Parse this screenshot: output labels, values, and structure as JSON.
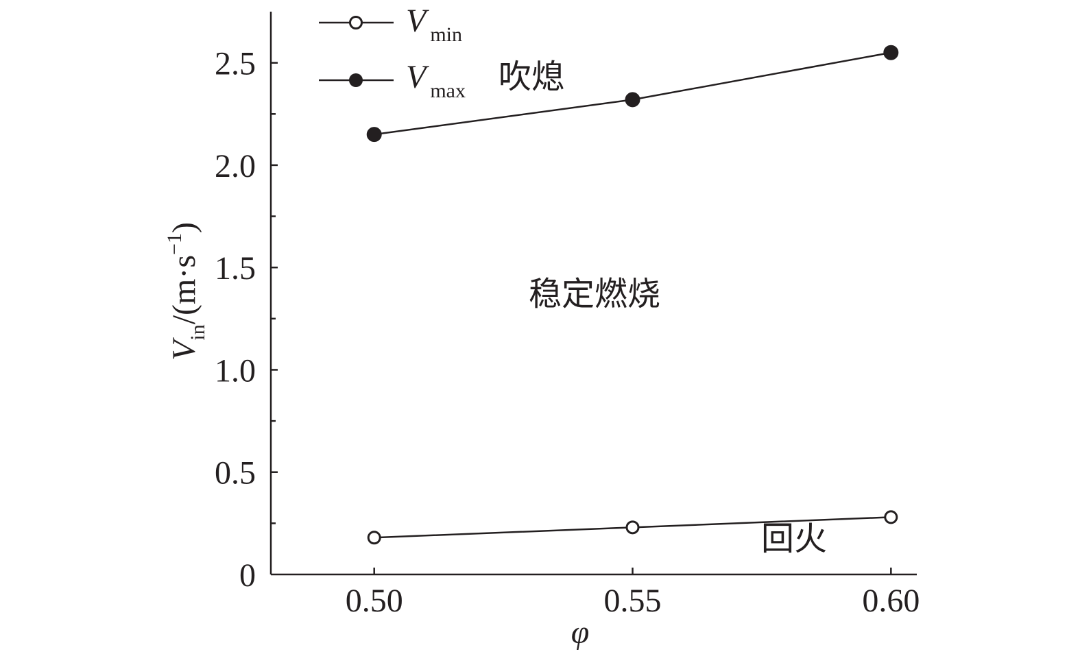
{
  "chart_data": {
    "type": "line",
    "x": [
      0.5,
      0.55,
      0.6
    ],
    "xticks": [
      "0.50",
      "0.55",
      "0.60"
    ],
    "yticks": [
      "0",
      "0.5",
      "1.0",
      "1.5",
      "2.0",
      "2.5"
    ],
    "xlim": [
      0.48,
      0.605
    ],
    "ylim": [
      0,
      2.75
    ],
    "xlabel": "φ",
    "ylabel": {
      "symbol": "V",
      "subscript": "in",
      "units_prefix": "/(m·s",
      "units_exp": "−1",
      "units_suffix": ")"
    },
    "grid": false,
    "legend_position": "top-left",
    "series": [
      {
        "name": "V_min",
        "symbol": "V",
        "subscript": "min",
        "marker": "open-circle",
        "values": [
          0.18,
          0.23,
          0.28
        ]
      },
      {
        "name": "V_max",
        "symbol": "V",
        "subscript": "max",
        "marker": "filled-circle",
        "values": [
          2.15,
          2.32,
          2.55
        ]
      }
    ],
    "annotations": {
      "blowout": "吹熄",
      "stable": "稳定燃烧",
      "flashback": "回火"
    },
    "colors": {
      "line": "#231f20",
      "marker_fill_open": "#ffffff",
      "marker_fill_filled": "#231f20"
    }
  }
}
